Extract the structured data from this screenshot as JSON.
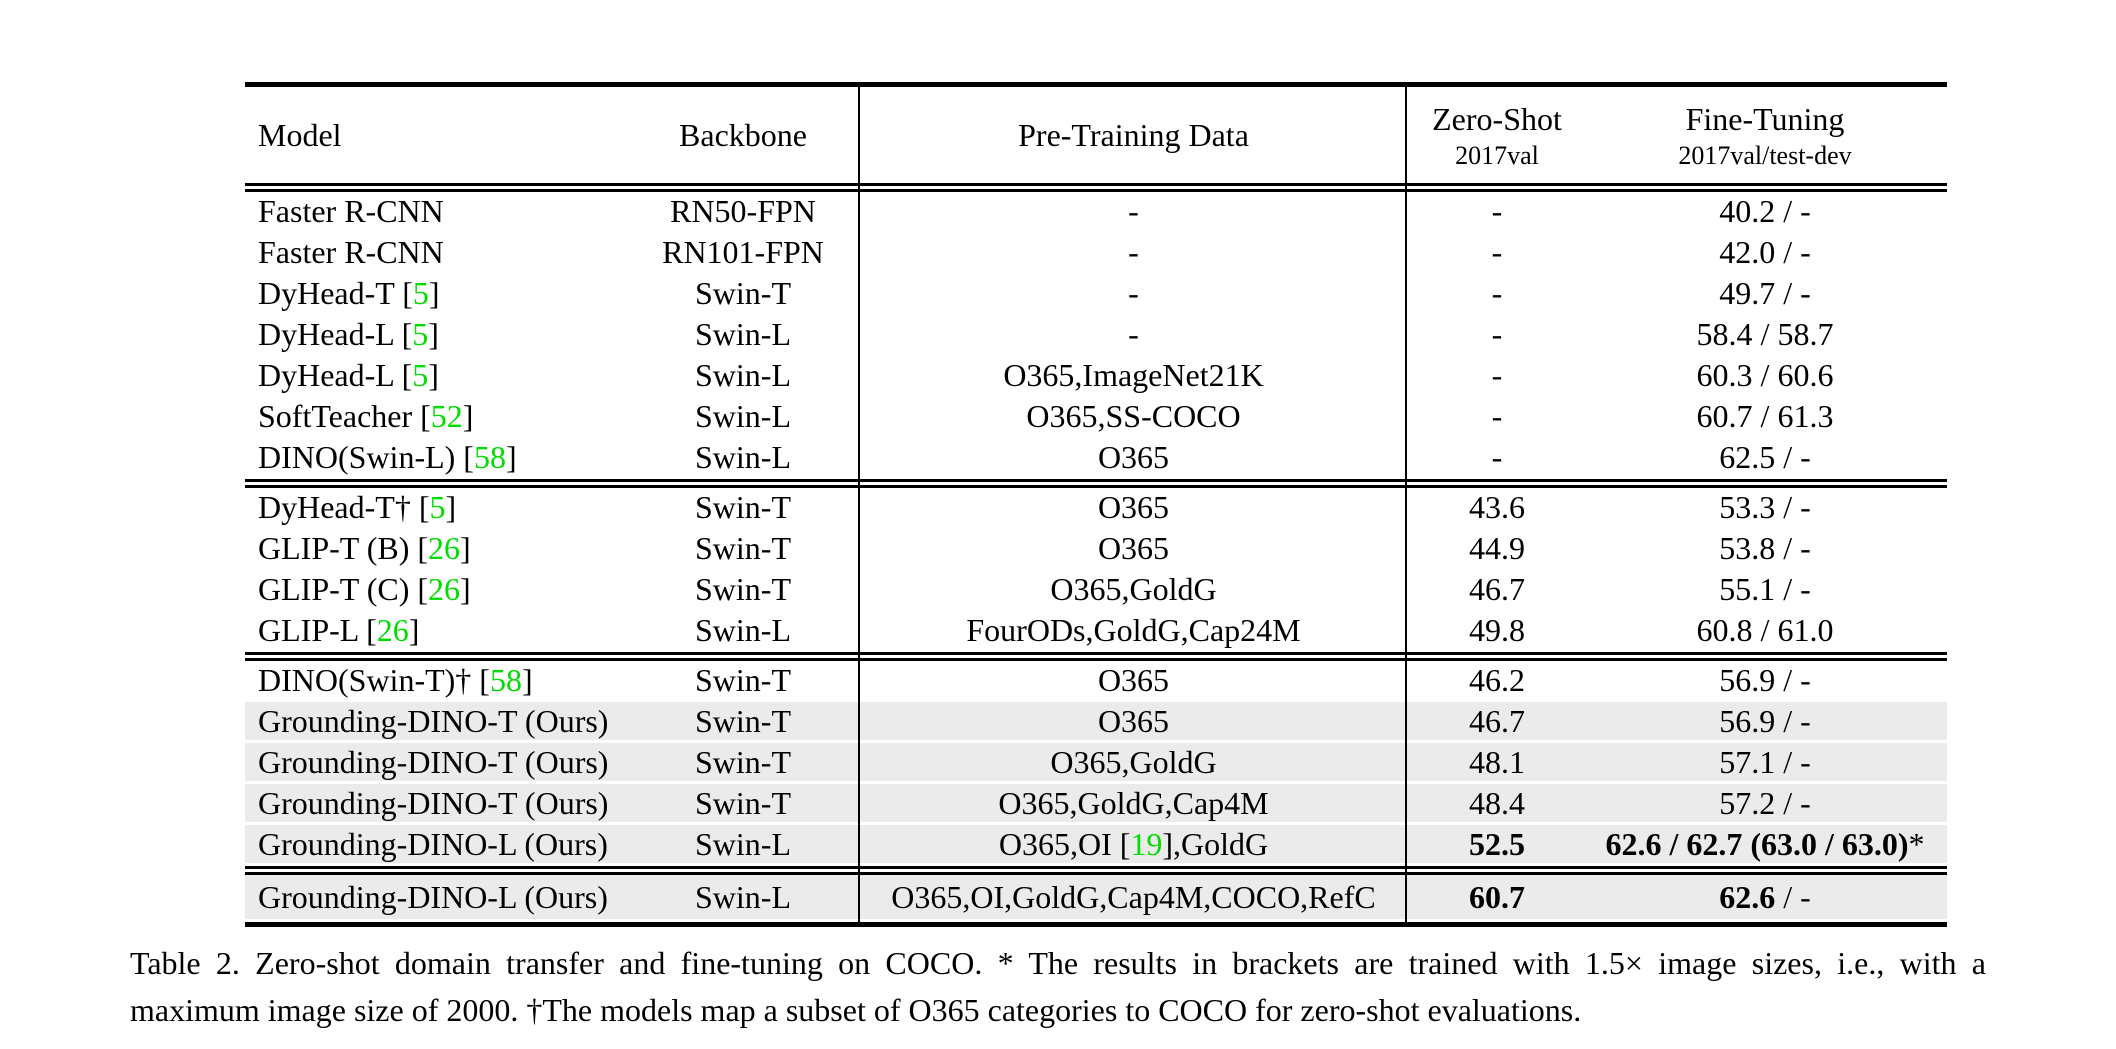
{
  "table": {
    "columns": [
      {
        "label": "Model",
        "sub": ""
      },
      {
        "label": "Backbone",
        "sub": ""
      },
      {
        "label": "Pre-Training Data",
        "sub": ""
      },
      {
        "label": "Zero-Shot",
        "sub": "2017val"
      },
      {
        "label": "Fine-Tuning",
        "sub": "2017val/test-dev"
      }
    ],
    "sections": [
      {
        "rows": [
          {
            "model": [
              {
                "t": "Faster R-CNN"
              }
            ],
            "backbone": "RN50-FPN",
            "pretrain": [
              {
                "t": "-"
              }
            ],
            "zeroshot": [
              {
                "t": "-"
              }
            ],
            "finetune": [
              {
                "t": "40.2 / -"
              }
            ],
            "highlight": false
          },
          {
            "model": [
              {
                "t": "Faster R-CNN"
              }
            ],
            "backbone": "RN101-FPN",
            "pretrain": [
              {
                "t": "-"
              }
            ],
            "zeroshot": [
              {
                "t": "-"
              }
            ],
            "finetune": [
              {
                "t": "42.0 / -"
              }
            ],
            "highlight": false
          },
          {
            "model": [
              {
                "t": "DyHead-T ["
              },
              {
                "t": "5",
                "g": true
              },
              {
                "t": "]"
              }
            ],
            "backbone": "Swin-T",
            "pretrain": [
              {
                "t": "-"
              }
            ],
            "zeroshot": [
              {
                "t": "-"
              }
            ],
            "finetune": [
              {
                "t": "49.7 / -"
              }
            ],
            "highlight": false
          },
          {
            "model": [
              {
                "t": "DyHead-L ["
              },
              {
                "t": "5",
                "g": true
              },
              {
                "t": "]"
              }
            ],
            "backbone": "Swin-L",
            "pretrain": [
              {
                "t": "-"
              }
            ],
            "zeroshot": [
              {
                "t": "-"
              }
            ],
            "finetune": [
              {
                "t": "58.4 / 58.7"
              }
            ],
            "highlight": false
          },
          {
            "model": [
              {
                "t": "DyHead-L ["
              },
              {
                "t": "5",
                "g": true
              },
              {
                "t": "]"
              }
            ],
            "backbone": "Swin-L",
            "pretrain": [
              {
                "t": "O365,ImageNet21K"
              }
            ],
            "zeroshot": [
              {
                "t": "-"
              }
            ],
            "finetune": [
              {
                "t": "60.3 / 60.6"
              }
            ],
            "highlight": false
          },
          {
            "model": [
              {
                "t": "SoftTeacher ["
              },
              {
                "t": "52",
                "g": true
              },
              {
                "t": "]"
              }
            ],
            "backbone": "Swin-L",
            "pretrain": [
              {
                "t": "O365,SS-COCO"
              }
            ],
            "zeroshot": [
              {
                "t": "-"
              }
            ],
            "finetune": [
              {
                "t": "60.7 / 61.3"
              }
            ],
            "highlight": false
          },
          {
            "model": [
              {
                "t": "DINO(Swin-L) ["
              },
              {
                "t": "58",
                "g": true
              },
              {
                "t": "]"
              }
            ],
            "backbone": "Swin-L",
            "pretrain": [
              {
                "t": "O365"
              }
            ],
            "zeroshot": [
              {
                "t": "-"
              }
            ],
            "finetune": [
              {
                "t": "62.5 / -"
              }
            ],
            "highlight": false
          }
        ]
      },
      {
        "rows": [
          {
            "model": [
              {
                "t": "DyHead-T† ["
              },
              {
                "t": "5",
                "g": true
              },
              {
                "t": "]"
              }
            ],
            "backbone": "Swin-T",
            "pretrain": [
              {
                "t": "O365"
              }
            ],
            "zeroshot": [
              {
                "t": "43.6"
              }
            ],
            "finetune": [
              {
                "t": "53.3 / -"
              }
            ],
            "highlight": false
          },
          {
            "model": [
              {
                "t": "GLIP-T (B) ["
              },
              {
                "t": "26",
                "g": true
              },
              {
                "t": "]"
              }
            ],
            "backbone": "Swin-T",
            "pretrain": [
              {
                "t": "O365"
              }
            ],
            "zeroshot": [
              {
                "t": "44.9"
              }
            ],
            "finetune": [
              {
                "t": "53.8 / -"
              }
            ],
            "highlight": false
          },
          {
            "model": [
              {
                "t": "GLIP-T (C) ["
              },
              {
                "t": "26",
                "g": true
              },
              {
                "t": "]"
              }
            ],
            "backbone": "Swin-T",
            "pretrain": [
              {
                "t": "O365,GoldG"
              }
            ],
            "zeroshot": [
              {
                "t": "46.7"
              }
            ],
            "finetune": [
              {
                "t": "55.1 / -"
              }
            ],
            "highlight": false
          },
          {
            "model": [
              {
                "t": "GLIP-L ["
              },
              {
                "t": "26",
                "g": true
              },
              {
                "t": "]"
              }
            ],
            "backbone": "Swin-L",
            "pretrain": [
              {
                "t": "FourODs,GoldG,Cap24M"
              }
            ],
            "zeroshot": [
              {
                "t": "49.8"
              }
            ],
            "finetune": [
              {
                "t": "60.8 / 61.0"
              }
            ],
            "highlight": false
          }
        ]
      },
      {
        "rows": [
          {
            "model": [
              {
                "t": "DINO(Swin-T)† ["
              },
              {
                "t": "58",
                "g": true
              },
              {
                "t": "]"
              }
            ],
            "backbone": "Swin-T",
            "pretrain": [
              {
                "t": "O365"
              }
            ],
            "zeroshot": [
              {
                "t": "46.2"
              }
            ],
            "finetune": [
              {
                "t": "56.9 / -"
              }
            ],
            "highlight": false
          },
          {
            "model": [
              {
                "t": "Grounding-DINO-T (Ours)"
              }
            ],
            "backbone": "Swin-T",
            "pretrain": [
              {
                "t": "O365"
              }
            ],
            "zeroshot": [
              {
                "t": "46.7"
              }
            ],
            "finetune": [
              {
                "t": "56.9 / -"
              }
            ],
            "highlight": true
          },
          {
            "model": [
              {
                "t": "Grounding-DINO-T (Ours)"
              }
            ],
            "backbone": "Swin-T",
            "pretrain": [
              {
                "t": "O365,GoldG"
              }
            ],
            "zeroshot": [
              {
                "t": "48.1"
              }
            ],
            "finetune": [
              {
                "t": "57.1 / -"
              }
            ],
            "highlight": true
          },
          {
            "model": [
              {
                "t": "Grounding-DINO-T (Ours)"
              }
            ],
            "backbone": "Swin-T",
            "pretrain": [
              {
                "t": "O365,GoldG,Cap4M"
              }
            ],
            "zeroshot": [
              {
                "t": "48.4"
              }
            ],
            "finetune": [
              {
                "t": "57.2 / -"
              }
            ],
            "highlight": true
          },
          {
            "model": [
              {
                "t": "Grounding-DINO-L (Ours)"
              }
            ],
            "backbone": "Swin-L",
            "pretrain": [
              {
                "t": "O365,OI ["
              },
              {
                "t": "19",
                "g": true
              },
              {
                "t": "],GoldG"
              }
            ],
            "zeroshot": [
              {
                "t": "52.5",
                "b": true
              }
            ],
            "finetune": [
              {
                "t": "62.6 / 62.7 (63.0 / 63.0)",
                "b": true
              },
              {
                "t": "*"
              }
            ],
            "highlight": true
          }
        ]
      },
      {
        "rows": [
          {
            "model": [
              {
                "t": "Grounding-DINO-L (Ours)"
              }
            ],
            "backbone": "Swin-L",
            "pretrain": [
              {
                "t": "O365,OI,GoldG,Cap4M,COCO,RefC"
              }
            ],
            "zeroshot": [
              {
                "t": "60.7",
                "b": true
              }
            ],
            "finetune": [
              {
                "t": "62.6",
                "b": true
              },
              {
                "t": " / -"
              }
            ],
            "highlight": true
          }
        ]
      }
    ]
  },
  "caption": {
    "line1": "Table 2.  Zero-shot domain transfer and fine-tuning on COCO. * The results in brackets are trained with 1.5× image sizes, i.e., with a",
    "line2": "maximum image size of 2000. †The models map a subset of O365 categories to COCO for zero-shot evaluations."
  },
  "colors": {
    "citation_green": "#00dd00",
    "row_highlight": "#ebebeb"
  }
}
